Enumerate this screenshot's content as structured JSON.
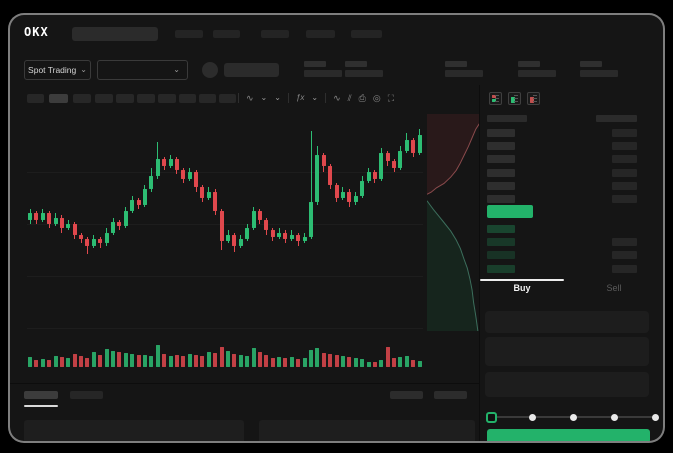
{
  "window": {
    "brand": "OKX"
  },
  "colors": {
    "up_green": "#2dbd73",
    "down_red": "#e0484d",
    "accent_green": "#23b26a",
    "bid_tint": "rgba(38,183,110,0.22)"
  },
  "top_nav": {
    "market_selector_label": "Spot Trading",
    "chevron": "⌄"
  },
  "chart_toolbar": {
    "icons": [
      {
        "name": "candle-style-icon",
        "glyph": "∿"
      },
      {
        "name": "chevron-icon",
        "glyph": "⌄"
      },
      {
        "name": "compare-chevron-icon",
        "glyph": "⌄"
      },
      {
        "name": "indicators-icon",
        "glyph": "ƒx"
      },
      {
        "name": "indicator-chevron-icon",
        "glyph": "⌄"
      },
      {
        "name": "line-draw-icon",
        "glyph": "∿"
      },
      {
        "name": "measure-icon",
        "glyph": "⫽"
      },
      {
        "name": "camera-icon",
        "glyph": "⎙"
      },
      {
        "name": "settings-icon",
        "glyph": "◎"
      },
      {
        "name": "fullscreen-icon",
        "glyph": "⛶"
      }
    ]
  },
  "orderbook": {
    "view_icons": [
      "book-combined",
      "book-bids",
      "book-asks"
    ],
    "ask_row_count": 6,
    "bid_row_count": 4,
    "bid_rows_with_amount": [
      1,
      2,
      3
    ],
    "bid_row_opacity": [
      0.3,
      0.22,
      0.18,
      0.26
    ]
  },
  "trade_panel": {
    "tabs": [
      {
        "label": "Buy",
        "active": true
      },
      {
        "label": "Sell",
        "active": false
      }
    ],
    "slider": {
      "stops": 5,
      "active_stop": 0
    }
  },
  "chart_data": {
    "type": "candlestick",
    "title": "",
    "xlabel": "",
    "ylabel": "",
    "note": "Stylized OKX spot-trading chart; no numeric axis labels visible. Prices normalized 0-100.",
    "ylim": [
      0,
      100
    ],
    "grid": true,
    "candles": [
      [
        52,
        57,
        50,
        55
      ],
      [
        55,
        56,
        50,
        52
      ],
      [
        52,
        57,
        51,
        55
      ],
      [
        55,
        56,
        48,
        50
      ],
      [
        50,
        55,
        49,
        53
      ],
      [
        53,
        54,
        46,
        48
      ],
      [
        48,
        52,
        47,
        50
      ],
      [
        50,
        51,
        43,
        45
      ],
      [
        45,
        46,
        41,
        43
      ],
      [
        43,
        44,
        36,
        40
      ],
      [
        40,
        45,
        39,
        43
      ],
      [
        43,
        44,
        39,
        41
      ],
      [
        41,
        48,
        40,
        46
      ],
      [
        46,
        53,
        45,
        51
      ],
      [
        51,
        52,
        47,
        49
      ],
      [
        49,
        58,
        48,
        56
      ],
      [
        56,
        63,
        55,
        61
      ],
      [
        61,
        62,
        57,
        59
      ],
      [
        59,
        68,
        58,
        66
      ],
      [
        66,
        76,
        65,
        72
      ],
      [
        72,
        88,
        71,
        80
      ],
      [
        80,
        81,
        75,
        77
      ],
      [
        77,
        82,
        76,
        80
      ],
      [
        80,
        81,
        73,
        75
      ],
      [
        75,
        76,
        69,
        71
      ],
      [
        71,
        76,
        70,
        74
      ],
      [
        74,
        75,
        65,
        67
      ],
      [
        67,
        68,
        60,
        62
      ],
      [
        62,
        67,
        61,
        65
      ],
      [
        65,
        66,
        54,
        56
      ],
      [
        56,
        57,
        38,
        42
      ],
      [
        42,
        47,
        41,
        45
      ],
      [
        45,
        46,
        37,
        40
      ],
      [
        40,
        45,
        39,
        43
      ],
      [
        43,
        50,
        42,
        48
      ],
      [
        48,
        58,
        47,
        56
      ],
      [
        56,
        57,
        50,
        52
      ],
      [
        52,
        53,
        45,
        47
      ],
      [
        47,
        48,
        42,
        44
      ],
      [
        44,
        48,
        43,
        46
      ],
      [
        46,
        47,
        41,
        43
      ],
      [
        43,
        47,
        42,
        45
      ],
      [
        45,
        46,
        40,
        42
      ],
      [
        42,
        46,
        41,
        44
      ],
      [
        44,
        93,
        43,
        60
      ],
      [
        60,
        86,
        59,
        82
      ],
      [
        82,
        83,
        74,
        77
      ],
      [
        77,
        78,
        66,
        68
      ],
      [
        68,
        69,
        60,
        62
      ],
      [
        62,
        67,
        61,
        65
      ],
      [
        65,
        66,
        58,
        60
      ],
      [
        60,
        65,
        59,
        63
      ],
      [
        63,
        72,
        62,
        70
      ],
      [
        70,
        76,
        69,
        74
      ],
      [
        74,
        75,
        69,
        71
      ],
      [
        71,
        85,
        70,
        83
      ],
      [
        83,
        84,
        77,
        79
      ],
      [
        79,
        80,
        74,
        76
      ],
      [
        76,
        86,
        75,
        84
      ],
      [
        84,
        92,
        83,
        89
      ],
      [
        89,
        90,
        81,
        83
      ],
      [
        83,
        94,
        82,
        91
      ]
    ],
    "volumes": [
      35,
      22,
      28,
      20,
      38,
      36,
      30,
      48,
      40,
      32,
      55,
      42,
      68,
      62,
      58,
      52,
      50,
      45,
      42,
      40,
      85,
      48,
      40,
      44,
      38,
      48,
      42,
      40,
      56,
      52,
      78,
      60,
      50,
      42,
      38,
      72,
      55,
      42,
      32,
      36,
      30,
      34,
      28,
      32,
      65,
      75,
      52,
      46,
      42,
      40,
      36,
      32,
      26,
      14,
      12,
      20,
      80,
      30,
      34,
      38,
      22,
      16
    ],
    "depth_overlay": {
      "asks_boundary": [
        [
          100,
          4
        ],
        [
          92,
          7
        ],
        [
          85,
          11
        ],
        [
          78,
          15
        ],
        [
          70,
          19
        ],
        [
          62,
          23
        ],
        [
          55,
          26
        ],
        [
          45,
          29
        ],
        [
          32,
          32
        ],
        [
          18,
          34
        ],
        [
          8,
          36
        ],
        [
          0,
          37
        ]
      ],
      "bids_boundary": [
        [
          0,
          40
        ],
        [
          6,
          42
        ],
        [
          12,
          44
        ],
        [
          22,
          47
        ],
        [
          32,
          50
        ],
        [
          45,
          54
        ],
        [
          55,
          58
        ],
        [
          63,
          62
        ],
        [
          70,
          67
        ],
        [
          76,
          71
        ],
        [
          81,
          76
        ],
        [
          85,
          81
        ],
        [
          88,
          87
        ],
        [
          92,
          93
        ],
        [
          96,
          100
        ]
      ]
    }
  }
}
